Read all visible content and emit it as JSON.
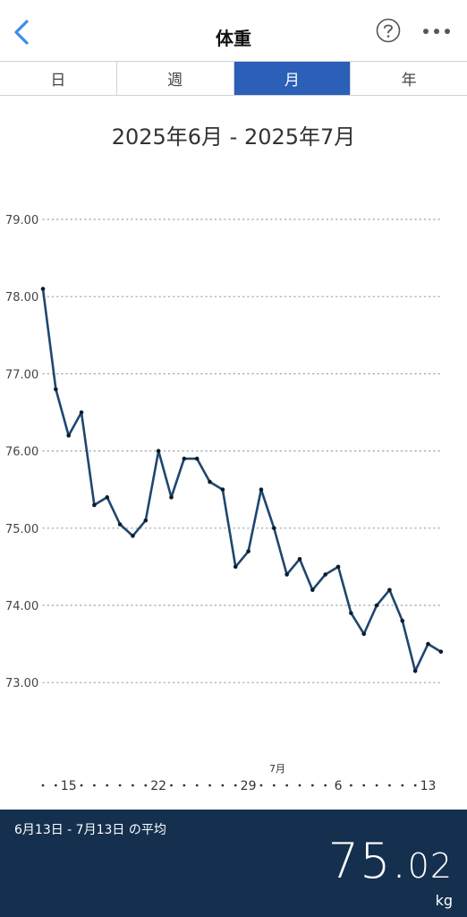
{
  "header": {
    "title": "体重",
    "back_icon": "chevron-left-icon",
    "help_icon": "question-circle-icon",
    "more_icon": "ellipsis-icon",
    "accent": "#3a8ee6"
  },
  "tabs": [
    {
      "label": "日",
      "active": false
    },
    {
      "label": "週",
      "active": false
    },
    {
      "label": "月",
      "active": true
    },
    {
      "label": "年",
      "active": false
    }
  ],
  "range_label": "2025年6月 - 2025年7月",
  "chart_data": {
    "type": "line",
    "title": "",
    "xlabel": "",
    "ylabel": "",
    "ylim": [
      72.0,
      79.0
    ],
    "y_ticks": [
      "79.00",
      "78.00",
      "77.00",
      "76.00",
      "75.00",
      "74.00",
      "73.00"
    ],
    "grid": "dotted horizontal",
    "x_tick_labels": [
      {
        "day": 15,
        "label": "15"
      },
      {
        "day": 22,
        "label": "22"
      },
      {
        "day": 29,
        "label": "29"
      },
      {
        "day": 36,
        "label": "6",
        "month_label": "7月"
      },
      {
        "day": 43,
        "label": "13"
      }
    ],
    "x_range": [
      13,
      43
    ],
    "series": [
      {
        "color": "#1f4670",
        "points": [
          {
            "date": "2025-06-13",
            "day": 13,
            "value": 78.1
          },
          {
            "date": "2025-06-14",
            "day": 14,
            "value": 76.8
          },
          {
            "date": "2025-06-15",
            "day": 15,
            "value": 76.2
          },
          {
            "date": "2025-06-16",
            "day": 16,
            "value": 76.5
          },
          {
            "date": "2025-06-17",
            "day": 17,
            "value": 75.3
          },
          {
            "date": "2025-06-18",
            "day": 18,
            "value": 75.4
          },
          {
            "date": "2025-06-19",
            "day": 19,
            "value": 75.05
          },
          {
            "date": "2025-06-20",
            "day": 20,
            "value": 74.9
          },
          {
            "date": "2025-06-21",
            "day": 21,
            "value": 75.1
          },
          {
            "date": "2025-06-22",
            "day": 22,
            "value": 76.0
          },
          {
            "date": "2025-06-23",
            "day": 23,
            "value": 75.4
          },
          {
            "date": "2025-06-24",
            "day": 24,
            "value": 75.9
          },
          {
            "date": "2025-06-25",
            "day": 25,
            "value": 75.9
          },
          {
            "date": "2025-06-26",
            "day": 26,
            "value": 75.6
          },
          {
            "date": "2025-06-27",
            "day": 27,
            "value": 75.5
          },
          {
            "date": "2025-06-28",
            "day": 28,
            "value": 74.5
          },
          {
            "date": "2025-06-29",
            "day": 29,
            "value": 74.7
          },
          {
            "date": "2025-06-30",
            "day": 30,
            "value": 75.5
          },
          {
            "date": "2025-07-01",
            "day": 31,
            "value": 75.0
          },
          {
            "date": "2025-07-02",
            "day": 32,
            "value": 74.4
          },
          {
            "date": "2025-07-03",
            "day": 33,
            "value": 74.6
          },
          {
            "date": "2025-07-04",
            "day": 34,
            "value": 74.2
          },
          {
            "date": "2025-07-05",
            "day": 35,
            "value": 74.4
          },
          {
            "date": "2025-07-06",
            "day": 36,
            "value": 74.5
          },
          {
            "date": "2025-07-07",
            "day": 37,
            "value": 73.9
          },
          {
            "date": "2025-07-08",
            "day": 38,
            "value": 73.63
          },
          {
            "date": "2025-07-09",
            "day": 39,
            "value": 74.0
          },
          {
            "date": "2025-07-10",
            "day": 40,
            "value": 74.2
          },
          {
            "date": "2025-07-11",
            "day": 41,
            "value": 73.8
          },
          {
            "date": "2025-07-12",
            "day": 42,
            "value": 73.15
          },
          {
            "date": "2025-07-13",
            "day": 43,
            "value": 73.5
          },
          {
            "date": "2025-07-14",
            "day": 44,
            "value": 73.4
          }
        ]
      }
    ]
  },
  "summary": {
    "label": "6月13日 - 7月13日 の平均",
    "value_int": "75",
    "value_dot": ".",
    "value_dec": "02",
    "unit": "kg",
    "bg": "#15304f"
  }
}
